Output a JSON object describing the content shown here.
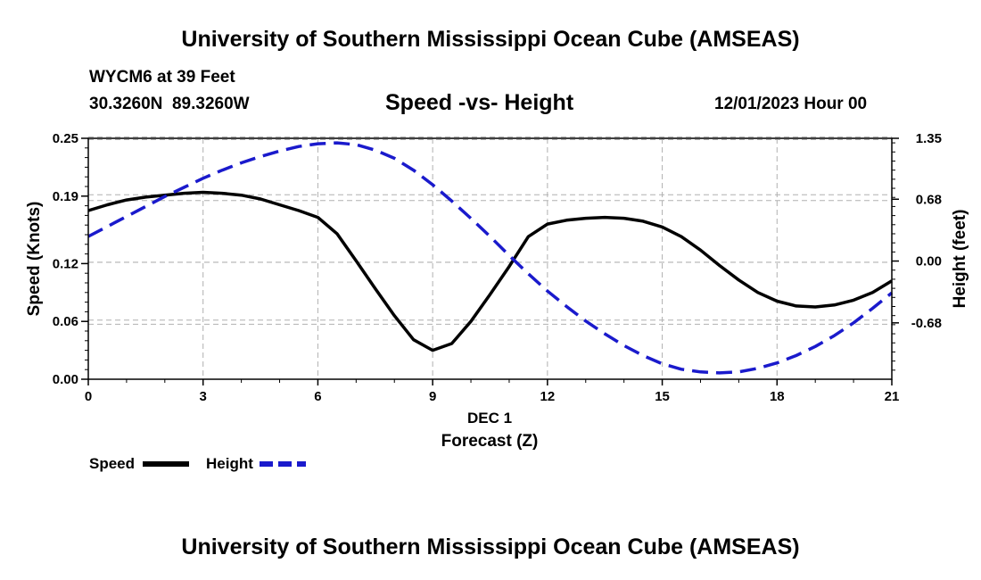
{
  "header": {
    "title_top": "University of Southern Mississippi Ocean Cube (AMSEAS)",
    "station": "WYCM6 at 39 Feet",
    "coords": "30.3260N  89.3260W",
    "subtitle": "Speed -vs- Height",
    "datetime": "12/01/2023 Hour 00"
  },
  "footer": {
    "title_bottom": "University of Southern Mississippi Ocean Cube (AMSEAS)"
  },
  "chart_data": {
    "type": "line",
    "title": "Speed -vs- Height",
    "xlabel": "Forecast (Z)",
    "xlabel_date": "DEC 1",
    "ylabel": "Speed (Knots)",
    "y2label": "Height (feet)",
    "xlim": [
      0,
      21
    ],
    "ylim": [
      0,
      0.25
    ],
    "y2lim": [
      -1.3,
      1.35
    ],
    "x_ticks": [
      "0",
      "3",
      "6",
      "9",
      "12",
      "15",
      "18",
      "21"
    ],
    "y_ticks": [
      "0.00",
      "0.06",
      "0.12",
      "0.19",
      "0.25"
    ],
    "y2_ticks": [
      "-0.68",
      "0.00",
      "0.68",
      "1.35"
    ],
    "grid": true,
    "legend": [
      {
        "label": "Speed",
        "color": "#000000",
        "style": "solid"
      },
      {
        "label": "Height",
        "color": "#1a1acc",
        "style": "dashed"
      }
    ],
    "series": [
      {
        "name": "Speed",
        "axis": "left",
        "color": "#000000",
        "style": "solid",
        "x": [
          0,
          0.5,
          1,
          1.5,
          2,
          2.5,
          3,
          3.5,
          4,
          4.5,
          5,
          5.5,
          6,
          6.5,
          7,
          7.5,
          8,
          8.5,
          9,
          9.5,
          10,
          10.5,
          11,
          11.5,
          12,
          12.5,
          13,
          13.5,
          14,
          14.5,
          15,
          15.5,
          16,
          16.5,
          17,
          17.5,
          18,
          18.5,
          19,
          19.5,
          20,
          20.5,
          21
        ],
        "values": [
          0.175,
          0.181,
          0.186,
          0.189,
          0.191,
          0.193,
          0.194,
          0.193,
          0.191,
          0.187,
          0.181,
          0.175,
          0.168,
          0.151,
          0.123,
          0.094,
          0.066,
          0.041,
          0.03,
          0.037,
          0.06,
          0.088,
          0.117,
          0.148,
          0.161,
          0.165,
          0.167,
          0.168,
          0.167,
          0.164,
          0.158,
          0.148,
          0.134,
          0.118,
          0.103,
          0.09,
          0.081,
          0.076,
          0.075,
          0.077,
          0.082,
          0.09,
          0.102
        ]
      },
      {
        "name": "Height",
        "axis": "right",
        "color": "#1a1acc",
        "style": "dashed",
        "x": [
          0,
          0.5,
          1,
          1.5,
          2,
          2.5,
          3,
          3.5,
          4,
          4.5,
          5,
          5.5,
          6,
          6.5,
          7,
          7.5,
          8,
          8.5,
          9,
          9.5,
          10,
          10.5,
          11,
          11.5,
          12,
          12.5,
          13,
          13.5,
          14,
          14.5,
          15,
          15.5,
          16,
          16.5,
          17,
          17.5,
          18,
          18.5,
          19,
          19.5,
          20,
          20.5,
          21
        ],
        "values": [
          0.27,
          0.38,
          0.49,
          0.6,
          0.71,
          0.81,
          0.91,
          1.0,
          1.08,
          1.15,
          1.21,
          1.26,
          1.29,
          1.3,
          1.28,
          1.22,
          1.13,
          1.0,
          0.84,
          0.66,
          0.47,
          0.27,
          0.06,
          -0.14,
          -0.33,
          -0.5,
          -0.66,
          -0.8,
          -0.93,
          -1.04,
          -1.13,
          -1.19,
          -1.22,
          -1.23,
          -1.22,
          -1.18,
          -1.12,
          -1.04,
          -0.94,
          -0.82,
          -0.68,
          -0.52,
          -0.35
        ]
      }
    ]
  }
}
